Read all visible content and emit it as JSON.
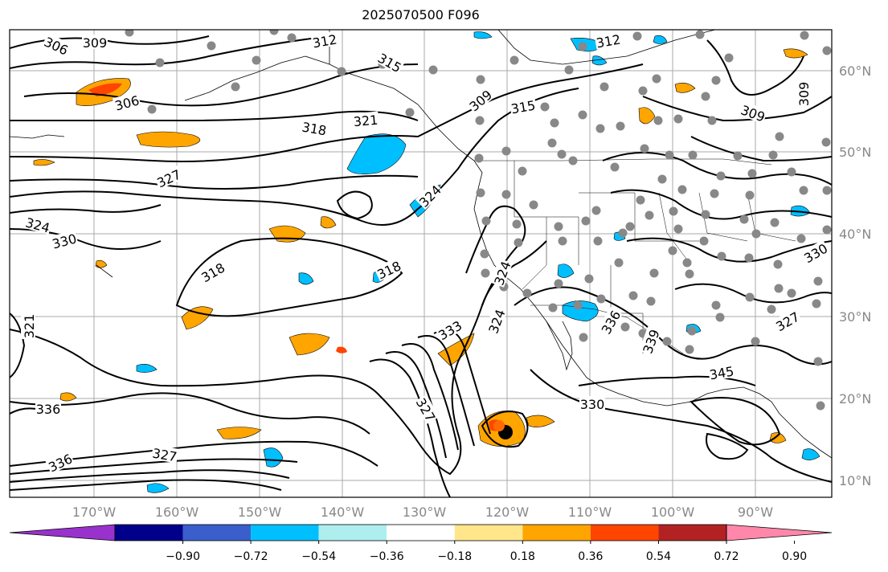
{
  "title": "2025070500 F096",
  "map": {
    "lon_ticks": [
      "170°W",
      "160°W",
      "150°W",
      "140°W",
      "130°W",
      "120°W",
      "110°W",
      "100°W",
      "90°W"
    ],
    "lat_ticks": [
      "60°N",
      "50°N",
      "40°N",
      "30°N",
      "20°N",
      "10°N"
    ],
    "gridlines": true,
    "contour_labels": [
      "306",
      "309",
      "312",
      "315",
      "309",
      "306",
      "321",
      "315",
      "312",
      "309",
      "309",
      "318",
      "324",
      "330",
      "327",
      "318",
      "318",
      "324",
      "324",
      "330",
      "336",
      "345",
      "336",
      "327",
      "324",
      "333",
      "336",
      "327",
      "321",
      "327",
      "330",
      "339"
    ],
    "markers": {
      "dots": "gray",
      "storm_symbol": "black"
    }
  },
  "colorbar": {
    "colors": [
      "#9932cc",
      "#00008b",
      "#3a5fcd",
      "#00bfff",
      "#afeeee",
      "#ffffff",
      "#ffe68a",
      "#ffa500",
      "#ff4500",
      "#b22222",
      "#ff88aa"
    ],
    "labels": [
      "−0.90",
      "−0.72",
      "−0.54",
      "−0.36",
      "−0.18",
      "0.18",
      "0.36",
      "0.54",
      "0.72",
      "0.90"
    ]
  }
}
